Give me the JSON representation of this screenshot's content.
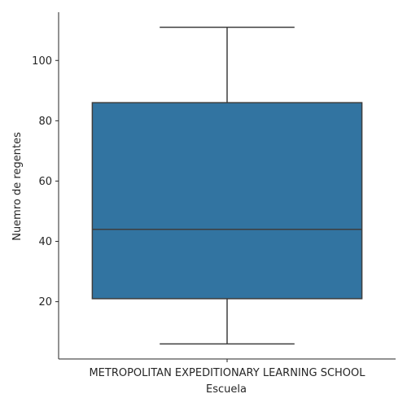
{
  "chart_data": {
    "type": "box",
    "categories": [
      "METROPOLITAN EXPEDITIONARY LEARNING SCHOOL"
    ],
    "series": [
      {
        "name": "METROPOLITAN EXPEDITIONARY LEARNING SCHOOL",
        "whisker_low": 6,
        "q1": 21,
        "median": 44,
        "q3": 86,
        "whisker_high": 111
      }
    ],
    "xlabel": "Escuela",
    "ylabel": "Nuemro de regentes",
    "yticks": [
      20,
      40,
      60,
      80,
      100
    ],
    "ylim": [
      1,
      116
    ],
    "box_color": "#3274a1",
    "line_color": "#3d3d3d",
    "axis_color": "#262626"
  }
}
